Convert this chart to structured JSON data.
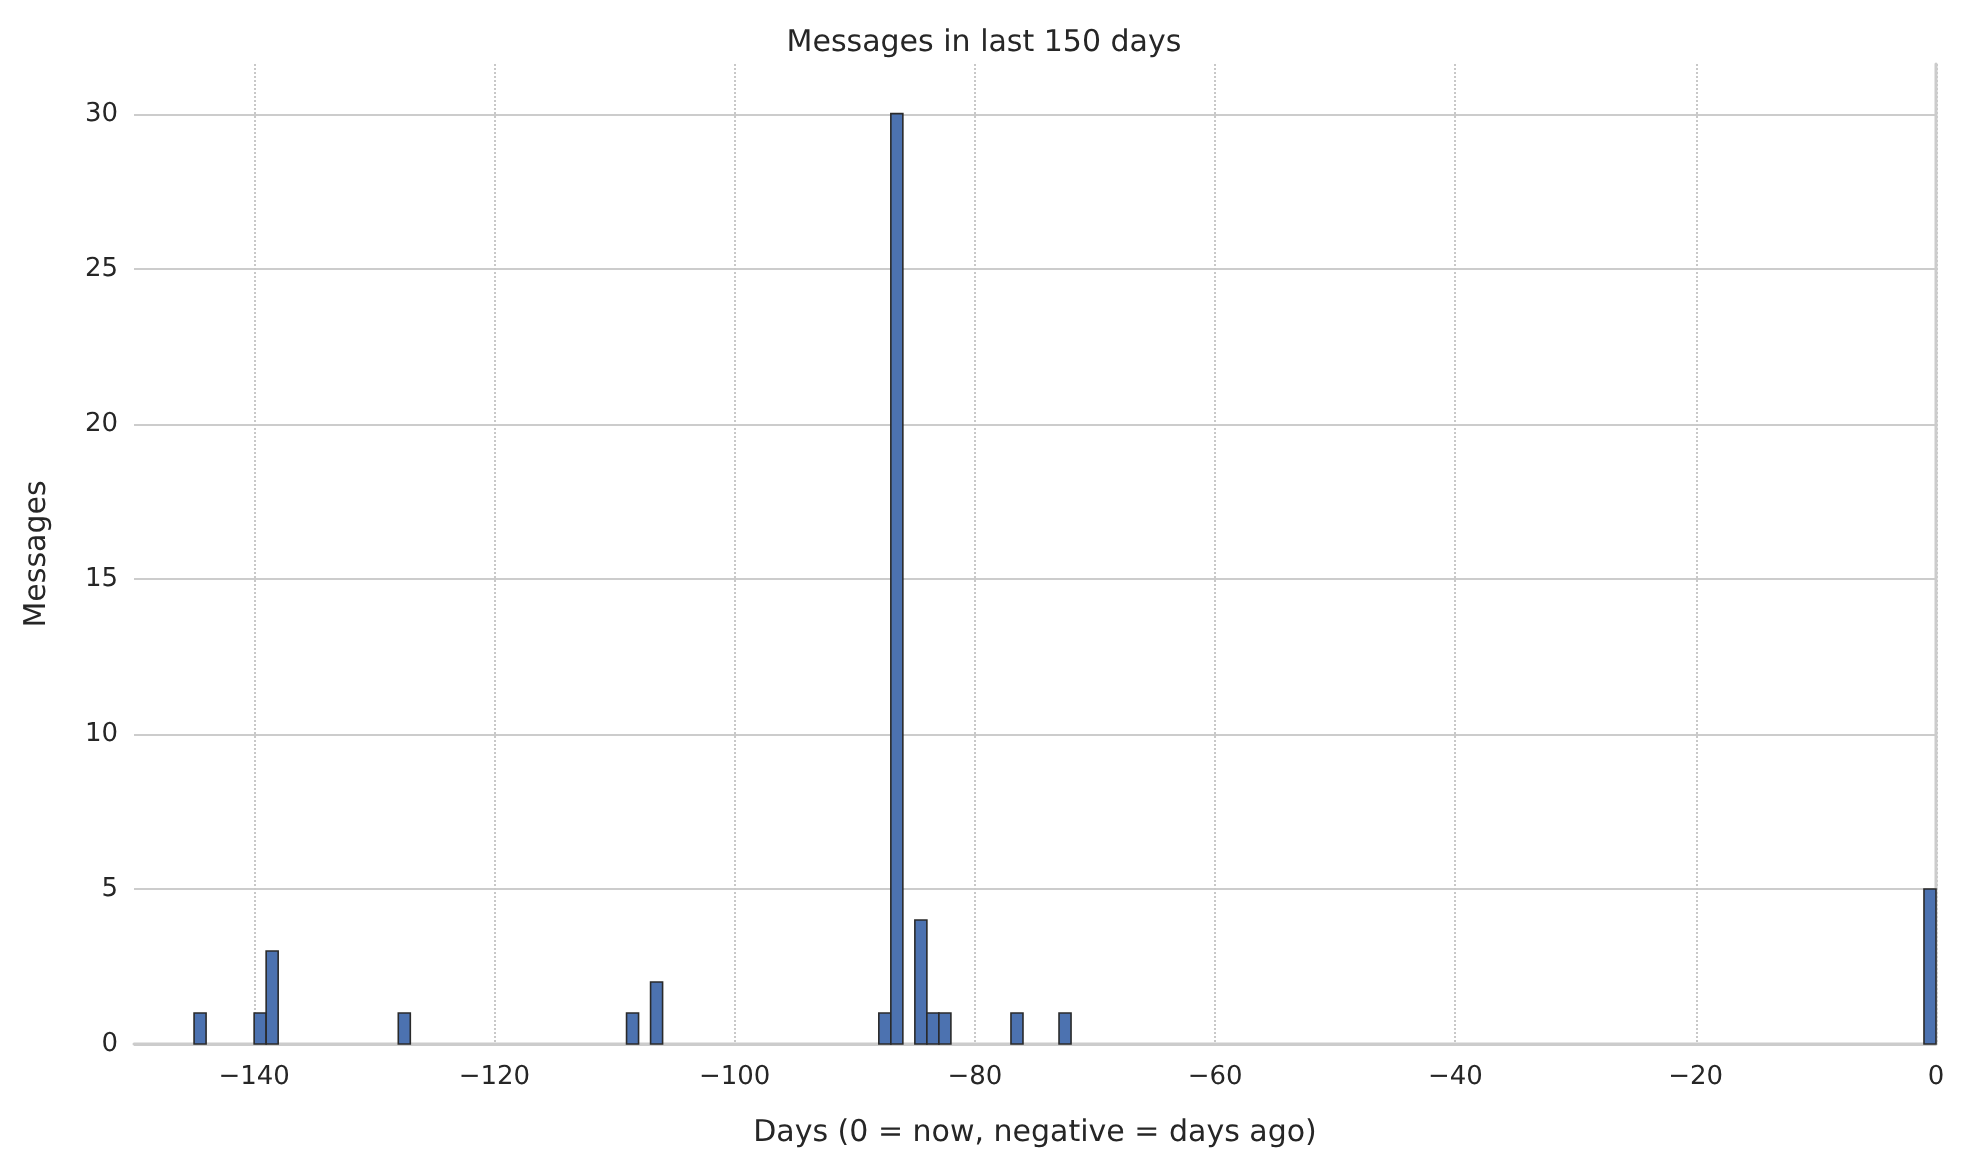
{
  "chart_data": {
    "type": "histogram",
    "title": "Messages in last 150 days",
    "xlabel": "Days (0 = now, negative = days ago)",
    "ylabel": "Messages",
    "bins": [
      -150,
      -149,
      -148,
      -147,
      -146,
      -145,
      -144,
      -143,
      -142,
      -141,
      -140,
      -139,
      -138,
      -137,
      -136,
      -135,
      -134,
      -133,
      -132,
      -131,
      -130,
      -129,
      -128,
      -127,
      -126,
      -125,
      -124,
      -123,
      -122,
      -121,
      -120,
      -119,
      -118,
      -117,
      -116,
      -115,
      -114,
      -113,
      -112,
      -111,
      -110,
      -109,
      -108,
      -107,
      -106,
      -105,
      -104,
      -103,
      -102,
      -101,
      -100,
      -99,
      -98,
      -97,
      -96,
      -95,
      -94,
      -93,
      -92,
      -91,
      -90,
      -89,
      -88,
      -87,
      -86,
      -85,
      -84,
      -83,
      -82,
      -81,
      -80,
      -79,
      -78,
      -77,
      -76,
      -75,
      -74,
      -73,
      -72,
      -71,
      -70,
      -69,
      -68,
      -67,
      -66,
      -65,
      -64,
      -63,
      -62,
      -61,
      -60,
      -59,
      -58,
      -57,
      -56,
      -55,
      -54,
      -53,
      -52,
      -51,
      -50,
      -49,
      -48,
      -47,
      -46,
      -45,
      -44,
      -43,
      -42,
      -41,
      -40,
      -39,
      -38,
      -37,
      -36,
      -35,
      -34,
      -33,
      -32,
      -31,
      -30,
      -29,
      -28,
      -27,
      -26,
      -25,
      -24,
      -23,
      -22,
      -21,
      -20,
      -19,
      -18,
      -17,
      -16,
      -15,
      -14,
      -13,
      -12,
      -11,
      -10,
      -9,
      -8,
      -7,
      -6,
      -5,
      -4,
      -3,
      -2,
      -1,
      0
    ],
    "values": [
      0,
      0,
      0,
      0,
      0,
      1,
      0,
      0,
      0,
      0,
      1,
      3,
      0,
      0,
      0,
      0,
      0,
      0,
      0,
      0,
      0,
      0,
      1,
      0,
      0,
      0,
      0,
      0,
      0,
      0,
      0,
      0,
      0,
      0,
      0,
      0,
      0,
      0,
      0,
      0,
      0,
      1,
      0,
      2,
      0,
      0,
      0,
      0,
      0,
      0,
      0,
      0,
      0,
      0,
      0,
      0,
      0,
      0,
      0,
      0,
      0,
      0,
      1,
      30,
      0,
      4,
      1,
      1,
      0,
      0,
      0,
      0,
      0,
      1,
      0,
      0,
      0,
      1,
      0,
      0,
      0,
      0,
      0,
      0,
      0,
      0,
      0,
      0,
      0,
      0,
      0,
      0,
      0,
      0,
      0,
      0,
      0,
      0,
      0,
      0,
      0,
      0,
      0,
      0,
      0,
      0,
      0,
      0,
      0,
      0,
      0,
      0,
      0,
      0,
      0,
      0,
      0,
      0,
      0,
      0,
      0,
      0,
      0,
      0,
      0,
      0,
      0,
      0,
      0,
      0,
      0,
      0,
      0,
      0,
      0,
      0,
      0,
      0,
      0,
      0,
      0,
      0,
      0,
      0,
      0,
      0,
      0,
      0,
      0,
      5
    ],
    "color": "#4c72b0",
    "xlim": [
      -150,
      0
    ],
    "xticks": [
      {
        "value": -140,
        "label": "−140"
      },
      {
        "value": -120,
        "label": "−120"
      },
      {
        "value": -100,
        "label": "−100"
      },
      {
        "value": -80,
        "label": "−80"
      },
      {
        "value": -60,
        "label": "−60"
      },
      {
        "value": -40,
        "label": "−40"
      },
      {
        "value": -20,
        "label": "−20"
      },
      0
    ],
    "ylim": [
      0,
      31.6
    ],
    "yticks": [
      0,
      5,
      10,
      15,
      20,
      25,
      30
    ],
    "grid": true
  }
}
